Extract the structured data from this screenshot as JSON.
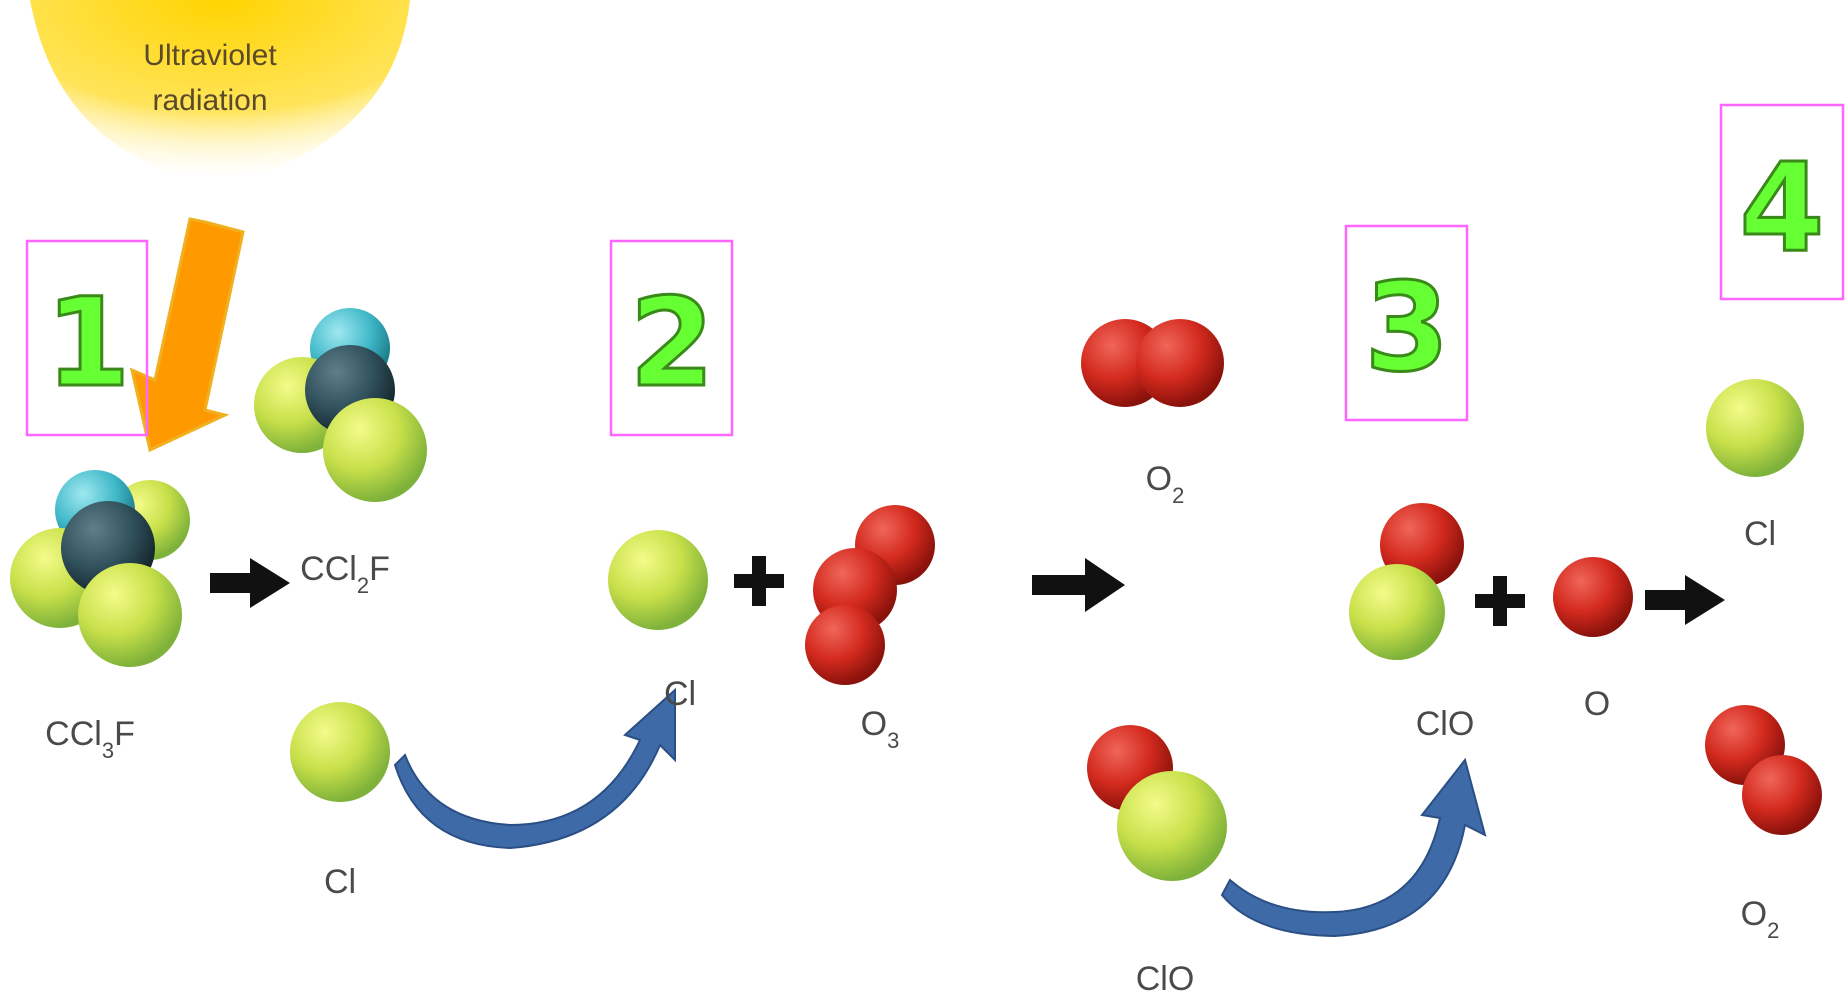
{
  "title": "",
  "uv_label_line1": "Ultraviolet",
  "uv_label_line2": "radiation",
  "steps": [
    "1",
    "2",
    "3",
    "4"
  ],
  "molecules": {
    "ccl3f": "CCl",
    "ccl3f_sub": "3",
    "ccl3f_end": "F",
    "ccl2f": "CCl",
    "ccl2f_sub": "2",
    "ccl2f_end": "F",
    "cl_released": "Cl",
    "cl_reactant": "Cl",
    "o3": "O",
    "o3_sub": "3",
    "o2_product": "O",
    "o2_product_sub": "2",
    "clo_product": "ClO",
    "clo_reactant": "ClO",
    "o_atom": "O",
    "cl_final": "Cl",
    "o2_final": "O",
    "o2_final_sub": "2"
  },
  "colors": {
    "chlorine": "#c8e04a",
    "oxygen": "#d42a1e",
    "carbon": "#2f4f5a",
    "fluorine": "#3fb8c8",
    "uv_arrow": "#ff9900",
    "cycle_arrow": "#3f6aa8",
    "step_number": "#66ff33",
    "step_box": "#ff66ff"
  }
}
